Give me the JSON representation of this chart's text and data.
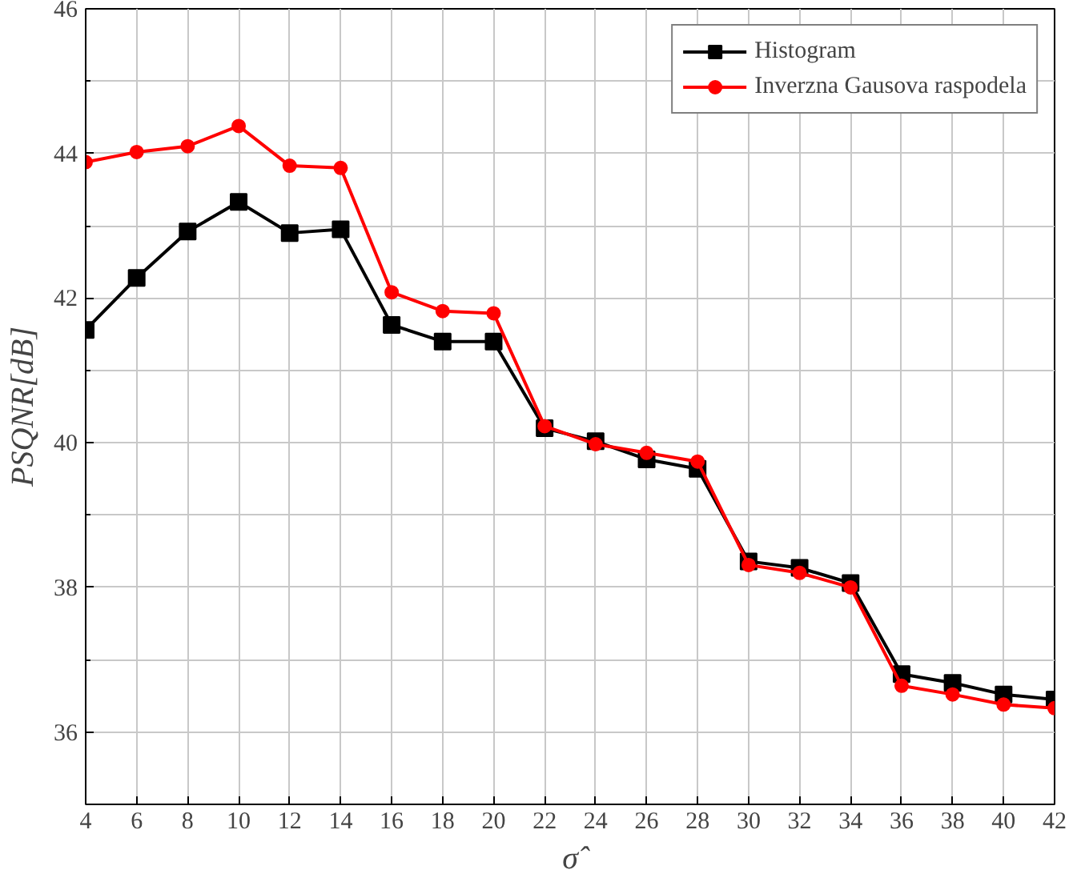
{
  "chart_data": {
    "type": "line",
    "xlabel": "σ̂",
    "ylabel": "PSQNR[dB]",
    "x": [
      4,
      6,
      8,
      10,
      12,
      14,
      16,
      18,
      20,
      22,
      24,
      26,
      28,
      30,
      32,
      34,
      36,
      38,
      40,
      42
    ],
    "series": [
      {
        "name": "Histogram",
        "color": "#000000",
        "marker": "square",
        "values": [
          41.56,
          42.28,
          42.92,
          43.33,
          42.9,
          42.95,
          41.63,
          41.4,
          41.4,
          40.2,
          40.02,
          39.77,
          39.64,
          38.36,
          38.27,
          38.06,
          36.8,
          36.68,
          36.52,
          36.45
        ]
      },
      {
        "name": "Inverzna Gausova raspodela",
        "color": "#ff0000",
        "marker": "circle",
        "values": [
          43.88,
          44.02,
          44.1,
          44.38,
          43.83,
          43.8,
          42.08,
          41.82,
          41.79,
          40.23,
          39.98,
          39.86,
          39.74,
          38.31,
          38.2,
          38.0,
          36.64,
          36.52,
          36.38,
          36.33
        ]
      }
    ],
    "xlim": [
      4,
      42
    ],
    "ylim": [
      35,
      46
    ],
    "xticks": [
      4,
      6,
      8,
      10,
      12,
      14,
      16,
      18,
      20,
      22,
      24,
      26,
      28,
      30,
      32,
      34,
      36,
      38,
      40,
      42
    ],
    "yticks": [
      36,
      38,
      40,
      42,
      44,
      46
    ],
    "grid": true,
    "legend": "top right",
    "line_style": "solid"
  }
}
